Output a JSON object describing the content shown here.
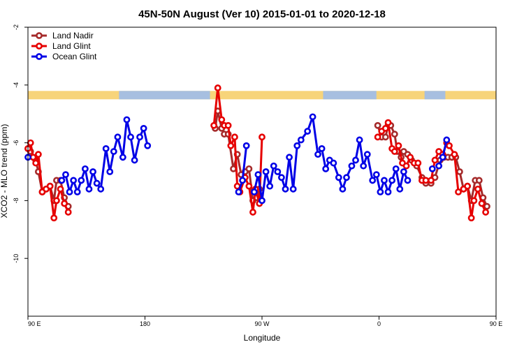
{
  "chart_data": {
    "type": "line",
    "title": "45N-50N August (Ver 10)   2015-01-01 to 2020-12-18",
    "xlabel": "Longitude",
    "ylabel": "XCO2 - MLO trend (ppm)",
    "xlim": [
      90,
      450
    ],
    "ylim": [
      -12,
      -2
    ],
    "y_inverted": true,
    "x_ticks": [
      {
        "value": 90,
        "label": "90 E"
      },
      {
        "value": 180,
        "label": "180"
      },
      {
        "value": 270,
        "label": "90 W"
      },
      {
        "value": 360,
        "label": "0"
      },
      {
        "value": 450,
        "label": "90 E"
      }
    ],
    "y_ticks": [
      {
        "value": -2,
        "label": "-2"
      },
      {
        "value": -4,
        "label": "-4"
      },
      {
        "value": -6,
        "label": "-6"
      },
      {
        "value": -8,
        "label": "-8"
      },
      {
        "value": -10,
        "label": "-10"
      }
    ],
    "land_mask": {
      "y": -4.35,
      "land_color": "#f7d47a",
      "ocean_color": "#a7bfe0",
      "ocean_ranges": [
        [
          160,
          230
        ],
        [
          317,
          358
        ],
        [
          395,
          411
        ]
      ]
    },
    "legend_position": "top-left",
    "series": [
      {
        "name": "Land Nadir",
        "color": "#a52a2a",
        "points": [
          [
            90,
            -6.2
          ],
          [
            92,
            -6.3
          ],
          [
            94,
            -6.5
          ],
          [
            96,
            -6.6
          ],
          [
            98,
            -7.0
          ],
          [
            101,
            -7.7
          ],
          [
            104,
            -7.6
          ],
          [
            107,
            -7.5
          ],
          [
            110,
            -8.0
          ],
          [
            112,
            -7.3
          ],
          [
            115,
            -7.3
          ],
          [
            118,
            -7.9
          ],
          [
            121,
            -8.2
          ],
          [
            null,
            null
          ],
          [
            234,
            -5.5
          ],
          [
            236,
            -4.9
          ],
          [
            239,
            -5.5
          ],
          [
            241,
            -5.7
          ],
          [
            244,
            -5.7
          ],
          [
            248,
            -6.9
          ],
          [
            251,
            -6.4
          ],
          [
            254,
            -7.1
          ],
          [
            257,
            -7.0
          ],
          [
            260,
            -6.9
          ],
          [
            263,
            -8.0
          ],
          [
            266,
            -7.9
          ],
          [
            268,
            -7.6
          ],
          [
            null,
            null
          ],
          [
            359,
            -5.4
          ],
          [
            362,
            -5.8
          ],
          [
            365,
            -5.8
          ],
          [
            367,
            -5.4
          ],
          [
            369,
            -5.4
          ],
          [
            372,
            -5.7
          ],
          [
            374,
            -6.3
          ],
          [
            377,
            -6.5
          ],
          [
            379,
            -6.3
          ],
          [
            382,
            -6.4
          ],
          [
            385,
            -6.6
          ],
          [
            389,
            -6.8
          ],
          [
            393,
            -7.2
          ],
          [
            396,
            -7.4
          ],
          [
            400,
            -7.4
          ],
          [
            403,
            -7.2
          ],
          [
            407,
            -6.6
          ],
          [
            410,
            -6.5
          ],
          [
            413,
            -6.5
          ],
          [
            416,
            -6.5
          ],
          [
            419,
            -6.5
          ],
          [
            422,
            -7.0
          ],
          [
            425,
            -7.6
          ],
          [
            428,
            -7.5
          ],
          [
            431,
            -8.0
          ],
          [
            434,
            -7.3
          ],
          [
            437,
            -7.3
          ],
          [
            440,
            -7.9
          ],
          [
            443,
            -8.2
          ]
        ]
      },
      {
        "name": "Land Glint",
        "color": "#e60000",
        "points": [
          [
            90,
            -6.2
          ],
          [
            92,
            -6.0
          ],
          [
            94,
            -6.5
          ],
          [
            96,
            -6.7
          ],
          [
            98,
            -6.4
          ],
          [
            101,
            -7.7
          ],
          [
            104,
            -7.6
          ],
          [
            107,
            -7.5
          ],
          [
            110,
            -8.6
          ],
          [
            112,
            -8.0
          ],
          [
            115,
            -7.6
          ],
          [
            118,
            -8.1
          ],
          [
            121,
            -8.4
          ],
          [
            null,
            null
          ],
          [
            233,
            -5.4
          ],
          [
            236,
            -4.1
          ],
          [
            239,
            -5.2
          ],
          [
            241,
            -5.4
          ],
          [
            244,
            -5.4
          ],
          [
            246,
            -6.1
          ],
          [
            249,
            -5.8
          ],
          [
            251,
            -7.5
          ],
          [
            253,
            -7.7
          ],
          [
            257,
            -7.2
          ],
          [
            260,
            -7.5
          ],
          [
            263,
            -8.4
          ],
          [
            265,
            -7.6
          ],
          [
            268,
            -8.1
          ],
          [
            270,
            -5.8
          ],
          [
            null,
            null
          ],
          [
            359,
            -5.8
          ],
          [
            362,
            -5.6
          ],
          [
            365,
            -5.5
          ],
          [
            367,
            -5.3
          ],
          [
            370,
            -6.2
          ],
          [
            372,
            -6.3
          ],
          [
            375,
            -6.1
          ],
          [
            378,
            -6.7
          ],
          [
            381,
            -6.8
          ],
          [
            384,
            -6.5
          ],
          [
            387,
            -6.7
          ],
          [
            390,
            -6.7
          ],
          [
            393,
            -7.3
          ],
          [
            396,
            -7.3
          ],
          [
            400,
            -7.3
          ],
          [
            403,
            -6.6
          ],
          [
            406,
            -6.3
          ],
          [
            409,
            -6.4
          ],
          [
            412,
            -6.0
          ],
          [
            414,
            -6.1
          ],
          [
            418,
            -6.4
          ],
          [
            421,
            -7.7
          ],
          [
            425,
            -7.6
          ],
          [
            428,
            -7.5
          ],
          [
            431,
            -8.6
          ],
          [
            433,
            -8.0
          ],
          [
            436,
            -7.6
          ],
          [
            439,
            -8.1
          ],
          [
            442,
            -8.4
          ]
        ]
      },
      {
        "name": "Ocean Glint",
        "color": "#0000e6",
        "points": [
          [
            90,
            -6.5
          ],
          [
            null,
            null
          ],
          [
            116,
            -7.3
          ],
          [
            119,
            -7.1
          ],
          [
            122,
            -7.7
          ],
          [
            125,
            -7.3
          ],
          [
            128,
            -7.7
          ],
          [
            131,
            -7.3
          ],
          [
            134,
            -6.9
          ],
          [
            137,
            -7.6
          ],
          [
            140,
            -7.0
          ],
          [
            143,
            -7.4
          ],
          [
            146,
            -7.6
          ],
          [
            150,
            -6.2
          ],
          [
            153,
            -7.0
          ],
          [
            156,
            -6.3
          ],
          [
            159,
            -5.8
          ],
          [
            163,
            -6.5
          ],
          [
            166,
            -5.2
          ],
          [
            169,
            -5.8
          ],
          [
            172,
            -6.6
          ],
          [
            176,
            -5.8
          ],
          [
            179,
            -5.5
          ],
          [
            182,
            -6.1
          ],
          [
            null,
            null
          ],
          [
            252,
            -7.7
          ],
          [
            255,
            -7.3
          ],
          [
            258,
            -6.1
          ],
          [
            null,
            null
          ],
          [
            264,
            -7.7
          ],
          [
            267,
            -7.1
          ],
          [
            270,
            -8.0
          ],
          [
            273,
            -7.0
          ],
          [
            276,
            -7.5
          ],
          [
            279,
            -6.8
          ],
          [
            282,
            -7.0
          ],
          [
            285,
            -7.2
          ],
          [
            288,
            -7.6
          ],
          [
            291,
            -6.5
          ],
          [
            294,
            -7.6
          ],
          [
            297,
            -6.1
          ],
          [
            300,
            -5.9
          ],
          [
            305,
            -5.6
          ],
          [
            309,
            -5.1
          ],
          [
            313,
            -6.4
          ],
          [
            316,
            -6.2
          ],
          [
            319,
            -6.9
          ],
          [
            322,
            -6.6
          ],
          [
            325,
            -6.7
          ],
          [
            329,
            -7.2
          ],
          [
            332,
            -7.6
          ],
          [
            335,
            -7.2
          ],
          [
            339,
            -6.8
          ],
          [
            342,
            -6.6
          ],
          [
            345,
            -5.9
          ],
          [
            348,
            -6.8
          ],
          [
            351,
            -6.4
          ],
          [
            355,
            -7.3
          ],
          [
            358,
            -7.1
          ],
          [
            361,
            -7.7
          ],
          [
            364,
            -7.3
          ],
          [
            367,
            -7.7
          ],
          [
            370,
            -7.3
          ],
          [
            373,
            -6.9
          ],
          [
            376,
            -7.6
          ],
          [
            379,
            -7.0
          ],
          [
            382,
            -7.3
          ],
          [
            null,
            null
          ],
          [
            401,
            -6.9
          ],
          [
            null,
            null
          ],
          [
            406,
            -6.8
          ],
          [
            409,
            -6.5
          ],
          [
            412,
            -5.9
          ]
        ]
      }
    ]
  }
}
